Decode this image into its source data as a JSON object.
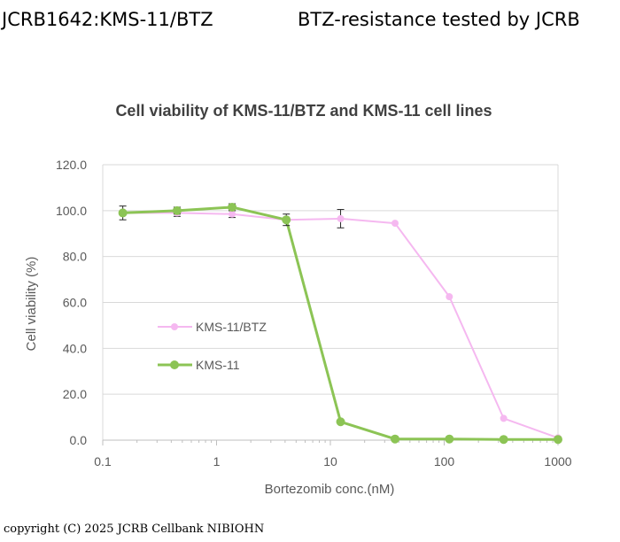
{
  "header": {
    "left_text": "JCRB1642:KMS-11/BTZ",
    "right_text": "BTZ-resistance tested by JCRB"
  },
  "footer": {
    "copyright": "copyright (C) 2025 JCRB Cellbank NIBIOHN"
  },
  "chart_data": {
    "type": "line",
    "title": "Cell viability of  KMS-11/BTZ and KMS-11 cell lines",
    "xlabel": "Bortezomib conc.(nM)",
    "ylabel": "Cell viability (%)",
    "x_scale": "log",
    "xlim": [
      0.1,
      1000
    ],
    "ylim": [
      0,
      120
    ],
    "x_ticks": [
      0.1,
      1,
      10,
      100,
      1000
    ],
    "x_tick_labels": [
      "0.1",
      "1",
      "10",
      "100",
      "1000"
    ],
    "y_ticks": [
      0,
      20,
      40,
      60,
      80,
      100,
      120
    ],
    "y_tick_labels": [
      "0.0",
      "20.0",
      "40.0",
      "60.0",
      "80.0",
      "100.0",
      "120.0"
    ],
    "grid": "horizontal",
    "legend_position": "center-left",
    "series": [
      {
        "name": "KMS-11/BTZ",
        "color": "#f5b8f0",
        "x": [
          0.15,
          0.45,
          1.37,
          4.1,
          12.3,
          37,
          111,
          333,
          1000
        ],
        "y": [
          99.0,
          99.0,
          98.5,
          96.0,
          96.5,
          94.5,
          62.5,
          9.5,
          1.0
        ],
        "error": [
          0.0,
          1.5,
          1.5,
          0.0,
          4.0,
          0.0,
          0.0,
          0.0,
          0.0
        ]
      },
      {
        "name": "KMS-11",
        "color": "#8cc455",
        "x": [
          0.15,
          0.45,
          1.37,
          4.1,
          12.3,
          37,
          111,
          333,
          1000
        ],
        "y": [
          99.0,
          100.0,
          101.5,
          96.0,
          8.0,
          0.5,
          0.5,
          0.3,
          0.3
        ],
        "error": [
          3.0,
          1.5,
          1.5,
          2.5,
          0.0,
          0.0,
          0.0,
          0.0,
          0.0
        ]
      }
    ]
  }
}
